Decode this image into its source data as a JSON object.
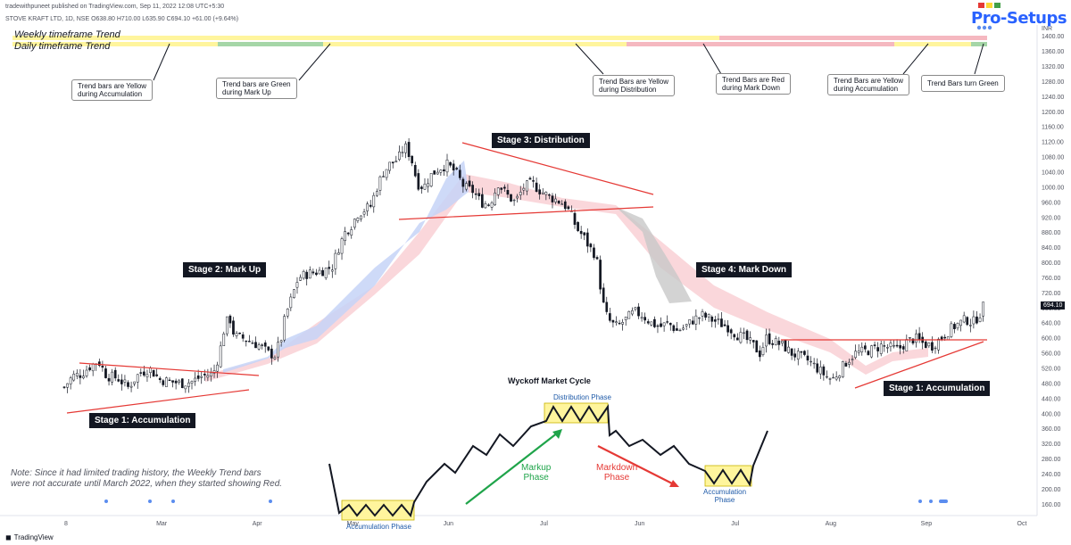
{
  "header": {
    "publisher": "tradewithpuneet published on TradingView.com, Sep 11, 2022 12:08 UTC+5:30",
    "symbol_line": "STOVE KRAFT LTD, 1D, NSE  O638.80  H710.00  L635.90  C694.10  +61.00 (+9.64%)",
    "currency": "INR",
    "logo": "Pro-Setups",
    "logo_colors": [
      "#e53935",
      "#fdd835",
      "#43a047"
    ]
  },
  "trend_rows": {
    "weekly_label": "Weekly timeframe Trend",
    "daily_label": "Daily timeframe Trend"
  },
  "callouts": {
    "c1": [
      "Trend bars are Yellow",
      "during Accumulation"
    ],
    "c2": [
      "Trend bars are Green",
      "during Mark Up"
    ],
    "c3": [
      "Trend Bars are Yellow",
      "during Distribution"
    ],
    "c4": [
      "Trend Bars are Red",
      "during Mark Down"
    ],
    "c5": [
      "Trend Bars are Yellow",
      "during Accumulation"
    ],
    "c6": [
      "Trend Bars turn Green"
    ]
  },
  "stages": {
    "s1": "Stage 1: Accumulation",
    "s2": "Stage 2: Mark Up",
    "s3": "Stage 3: Distribution",
    "s4": "Stage 4: Mark Down",
    "s5": "Stage 1: Accumulation"
  },
  "wyckoff": {
    "title": "Wyckoff Market Cycle",
    "accumulation": "Accumulation Phase",
    "distribution": "Distribution Phase",
    "markup": [
      "Markup",
      "Phase"
    ],
    "markdown": [
      "Markdown",
      "Phase"
    ],
    "accumulation2": [
      "Accumulation",
      "Phase"
    ]
  },
  "note": [
    "Note: Since it had limited trading history, the Weekly Trend bars",
    "were not accurate until March 2022, when they started showing Red."
  ],
  "footer": {
    "brand": "TradingView"
  },
  "colors": {
    "candle": "#131722",
    "trendline": "#e53935",
    "band_red": "#f8c9cf",
    "band_blue": "#c5d4f7",
    "band_gray": "#c8c8c8",
    "yellow": "#fff59d",
    "green_dot": "#66bb6a",
    "red_dot": "#ef9a9a",
    "markup_arrow": "#1fa44a",
    "markdown_arrow": "#e53935",
    "phase_text": "#1e5aa8"
  },
  "chart_data": {
    "type": "candlestick",
    "title": "STOVE KRAFT LTD, 1D, NSE",
    "y_axis": {
      "ticks": [
        160,
        200,
        240,
        280,
        320,
        360,
        400,
        440,
        480,
        520,
        560,
        600,
        640,
        680,
        720,
        760,
        800,
        840,
        880,
        920,
        960,
        1000,
        1040,
        1080,
        1120,
        1160,
        1200,
        1240,
        1280,
        1320,
        1360,
        1400
      ],
      "range": [
        130,
        1430
      ]
    },
    "x_axis": {
      "ticks": [
        "8",
        "Mar",
        "Apr",
        "May",
        "Jun",
        "Jul",
        "Jun",
        "Jul",
        "Aug",
        "Sep",
        "Oct"
      ]
    },
    "last_price": "694.10",
    "ohlc_last": {
      "open": 638.8,
      "high": 710.0,
      "low": 635.9,
      "close": 694.1,
      "change": "+61.00 (+9.64%)"
    },
    "price_path": [
      [
        0,
        470
      ],
      [
        8,
        500
      ],
      [
        16,
        505
      ],
      [
        24,
        525
      ],
      [
        32,
        540
      ],
      [
        40,
        500
      ],
      [
        50,
        495
      ],
      [
        60,
        470
      ],
      [
        70,
        505
      ],
      [
        80,
        520
      ],
      [
        90,
        490
      ],
      [
        100,
        485
      ],
      [
        110,
        480
      ],
      [
        120,
        485
      ],
      [
        130,
        500
      ],
      [
        140,
        505
      ],
      [
        146,
        560
      ],
      [
        150,
        620
      ],
      [
        155,
        660
      ],
      [
        160,
        605
      ],
      [
        168,
        600
      ],
      [
        176,
        590
      ],
      [
        184,
        580
      ],
      [
        192,
        560
      ],
      [
        198,
        555
      ],
      [
        204,
        600
      ],
      [
        208,
        660
      ],
      [
        213,
        700
      ],
      [
        220,
        760
      ],
      [
        228,
        770
      ],
      [
        236,
        775
      ],
      [
        244,
        780
      ],
      [
        252,
        790
      ],
      [
        258,
        840
      ],
      [
        264,
        880
      ],
      [
        270,
        900
      ],
      [
        276,
        930
      ],
      [
        282,
        940
      ],
      [
        288,
        950
      ],
      [
        294,
        1000
      ],
      [
        300,
        1040
      ],
      [
        306,
        1060
      ],
      [
        314,
        1075
      ],
      [
        320,
        1110
      ],
      [
        326,
        1080
      ],
      [
        332,
        1010
      ],
      [
        338,
        1000
      ],
      [
        344,
        1030
      ],
      [
        352,
        1050
      ],
      [
        360,
        1060
      ],
      [
        368,
        1040
      ],
      [
        376,
        1000
      ],
      [
        384,
        990
      ],
      [
        392,
        960
      ],
      [
        400,
        955
      ],
      [
        408,
        1010
      ],
      [
        416,
        980
      ],
      [
        424,
        960
      ],
      [
        432,
        1000
      ],
      [
        440,
        1010
      ],
      [
        448,
        990
      ],
      [
        456,
        975
      ],
      [
        464,
        965
      ],
      [
        470,
        955
      ],
      [
        476,
        930
      ],
      [
        482,
        890
      ],
      [
        488,
        870
      ],
      [
        494,
        840
      ],
      [
        500,
        820
      ],
      [
        504,
        740
      ],
      [
        508,
        670
      ],
      [
        514,
        640
      ],
      [
        520,
        630
      ],
      [
        528,
        650
      ],
      [
        536,
        670
      ],
      [
        544,
        660
      ],
      [
        552,
        640
      ],
      [
        560,
        630
      ],
      [
        568,
        640
      ],
      [
        576,
        620
      ],
      [
        584,
        630
      ],
      [
        592,
        650
      ],
      [
        600,
        660
      ],
      [
        608,
        650
      ],
      [
        616,
        640
      ],
      [
        624,
        630
      ],
      [
        632,
        610
      ],
      [
        640,
        600
      ],
      [
        648,
        580
      ],
      [
        654,
        560
      ],
      [
        660,
        600
      ],
      [
        668,
        590
      ],
      [
        676,
        580
      ],
      [
        684,
        560
      ],
      [
        692,
        550
      ],
      [
        700,
        540
      ],
      [
        708,
        520
      ],
      [
        716,
        500
      ],
      [
        722,
        490
      ],
      [
        728,
        510
      ],
      [
        736,
        540
      ],
      [
        744,
        560
      ],
      [
        752,
        565
      ],
      [
        760,
        570
      ],
      [
        768,
        580
      ],
      [
        776,
        575
      ],
      [
        784,
        570
      ],
      [
        792,
        590
      ],
      [
        800,
        600
      ],
      [
        808,
        585
      ],
      [
        816,
        580
      ],
      [
        824,
        600
      ],
      [
        830,
        615
      ],
      [
        836,
        630
      ],
      [
        842,
        640
      ],
      [
        848,
        650
      ],
      [
        854,
        640
      ],
      [
        860,
        660
      ],
      [
        866,
        694
      ]
    ],
    "annotations": [
      "Stage 1: Accumulation",
      "Stage 2: Mark Up",
      "Stage 3: Distribution",
      "Stage 4: Mark Down",
      "Stage 1: Accumulation"
    ],
    "legend_position": "none",
    "grid": false
  }
}
